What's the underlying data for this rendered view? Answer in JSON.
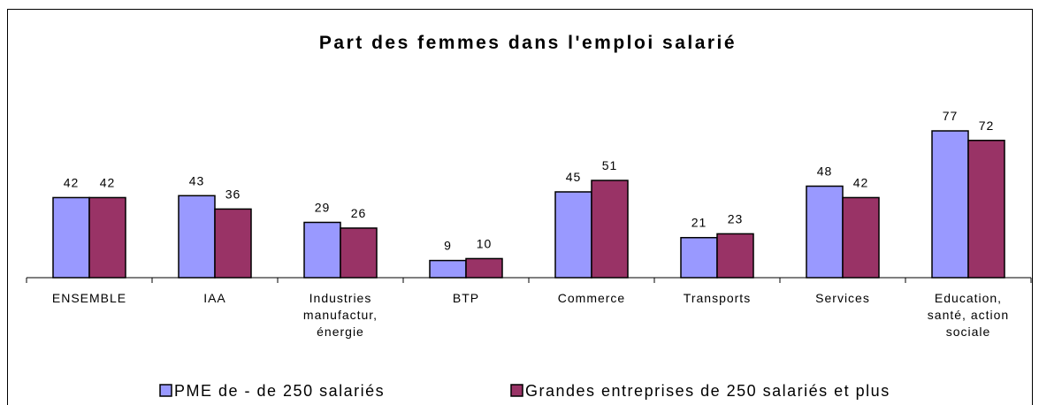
{
  "chart_data": {
    "type": "bar",
    "title": "Part des femmes dans l'emploi salarié",
    "categories": [
      [
        "ENSEMBLE"
      ],
      [
        "IAA"
      ],
      [
        "Industries",
        "manufactur,",
        "énergie"
      ],
      [
        "BTP"
      ],
      [
        "Commerce"
      ],
      [
        "Transports"
      ],
      [
        "Services"
      ],
      [
        "Education,",
        "santé, action",
        "sociale"
      ]
    ],
    "series": [
      {
        "name": "PME de - de 250 salariés",
        "color": "#9999ff",
        "values": [
          42,
          43,
          29,
          9,
          45,
          21,
          48,
          77
        ]
      },
      {
        "name": "Grandes entreprises de 250 salariés et plus",
        "color": "#993366",
        "values": [
          42,
          36,
          26,
          10,
          51,
          23,
          42,
          72
        ]
      }
    ],
    "legend": "bottom"
  }
}
